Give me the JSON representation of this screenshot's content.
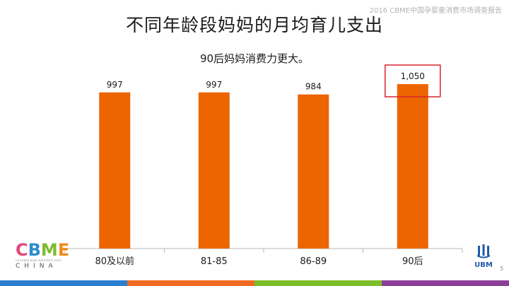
{
  "header": {
    "report_label": "2016 CBME中国孕婴童消费市场调查报告",
    "title": "不同年龄段妈妈的月均育儿支出",
    "subtitle": "90后妈妈消费力更大。"
  },
  "chart_data": {
    "type": "bar",
    "title": "不同年龄段妈妈的月均育儿支出",
    "subtitle": "90后妈妈消费力更大。",
    "categories": [
      "80及以前",
      "81-85",
      "86-89",
      "90后"
    ],
    "values": [
      997,
      997,
      984,
      1050
    ],
    "value_labels": [
      "997",
      "997",
      "984",
      "1,050"
    ],
    "highlighted_index": 3,
    "xlabel": "",
    "ylabel": "",
    "ylim": [
      0,
      1100
    ],
    "grid": false,
    "legend": "none",
    "bar_color": "#ec6500",
    "highlight_box_color": "#d9242a"
  },
  "logos": {
    "cbme_letters": [
      "C",
      "B",
      "M",
      "E"
    ],
    "cbme_letter_colors": [
      "#e4457a",
      "#2e8ccc",
      "#7dbb2e",
      "#f08a1c"
    ],
    "cbme_tagline": "CHILDREN BABY MATERNITY EXPO",
    "cbme_china": "CHINA",
    "ubm": "UBM",
    "ubm_color": "#1f5aa6"
  },
  "page_number": "5",
  "footer_strip_colors": [
    "#2a7fd0",
    "#ee6a20",
    "#7cbd2a",
    "#8d3f97"
  ]
}
